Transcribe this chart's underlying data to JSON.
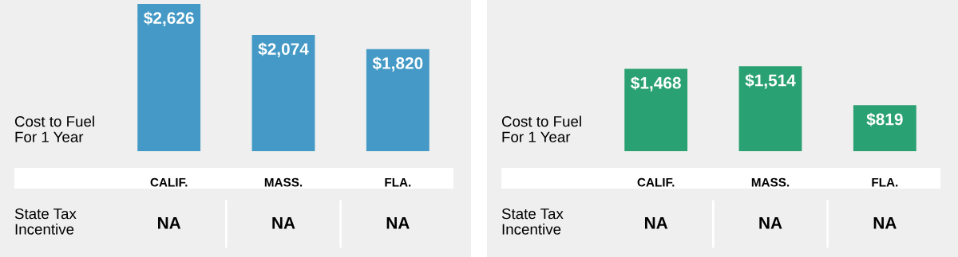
{
  "chart_data": [
    {
      "type": "bar",
      "ylabel": "Cost to Fuel\nFor 1 Year",
      "categories": [
        "CALIF.",
        "MASS.",
        "FLA."
      ],
      "values": [
        2626,
        2074,
        1820
      ],
      "value_labels": [
        "$2,626",
        "$2,074",
        "$1,820"
      ],
      "color": "#4499c6",
      "annotations": [
        "State Tax\nIncentive",
        "NA",
        "NA",
        "NA"
      ]
    },
    {
      "type": "bar",
      "ylabel": "Cost to Fuel\nFor 1 Year",
      "categories": [
        "CALIF.",
        "MASS.",
        "FLA."
      ],
      "values": [
        1468,
        1514,
        819
      ],
      "value_labels": [
        "$1,468",
        "$1,514",
        "$819"
      ],
      "color": "#2aa172",
      "annotations": [
        "State Tax\nIncentive",
        "NA",
        "NA",
        "NA"
      ]
    }
  ]
}
